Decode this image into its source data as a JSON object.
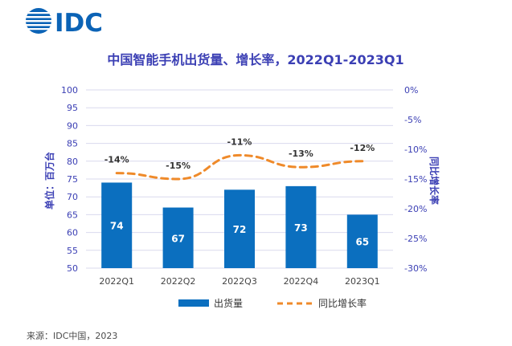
{
  "logo": {
    "text": "IDC",
    "color": "#0b63b6"
  },
  "source": "来源：IDC中国，2023",
  "chart_data": {
    "type": "bar",
    "title": "中国智能手机出货量、增长率，2022Q1-2023Q1",
    "ylabel": "单位：百万台",
    "y2label": "同比增长率",
    "categories": [
      "2022Q1",
      "2022Q2",
      "2022Q3",
      "2022Q4",
      "2023Q1"
    ],
    "ylim": [
      50,
      100
    ],
    "yticks": [
      "100",
      "95",
      "90",
      "85",
      "80",
      "75",
      "70",
      "65",
      "60",
      "55",
      "50"
    ],
    "y2lim": [
      -30,
      0
    ],
    "y2ticks": [
      "0%",
      "-5%",
      "-10%",
      "-15%",
      "-20%",
      "-25%",
      "-30%"
    ],
    "series": [
      {
        "name": "出货量",
        "type": "bar",
        "axis": "left",
        "values": [
          74,
          67,
          72,
          73,
          65
        ],
        "labels": [
          "74",
          "67",
          "72",
          "73",
          "65"
        ],
        "color": "#0b6fbf"
      },
      {
        "name": "同比增长率",
        "type": "line",
        "axis": "right",
        "style": "dashed",
        "values": [
          -14,
          -15,
          -11,
          -13,
          -12
        ],
        "labels": [
          "-14%",
          "-15%",
          "-11%",
          "-13%",
          "-12%"
        ],
        "color": "#ef8a2a"
      }
    ],
    "grid": true,
    "legend": "bottom",
    "colors": {
      "title": "#3b3fb4",
      "axis_label": "#3b3fb4",
      "tick": "#3b3fb4",
      "grid": "#d9d9ee"
    }
  }
}
